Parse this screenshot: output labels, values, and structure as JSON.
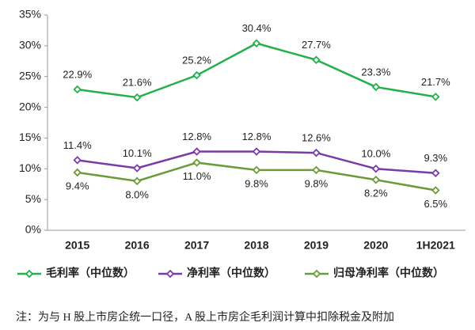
{
  "chart_data": {
    "type": "line",
    "categories": [
      "2015",
      "2016",
      "2017",
      "2018",
      "2019",
      "2020",
      "1H2021"
    ],
    "series": [
      {
        "name": "毛利率（中位数）",
        "color": "#22b04b",
        "label_pos": "above",
        "values": [
          22.9,
          21.6,
          25.2,
          30.4,
          27.7,
          23.3,
          21.7
        ],
        "value_labels": [
          "22.9%",
          "21.6%",
          "25.2%",
          "30.4%",
          "27.7%",
          "23.3%",
          "21.7%"
        ]
      },
      {
        "name": "净利率（中位数）",
        "color": "#7a3aa8",
        "label_pos": "above",
        "values": [
          11.4,
          10.1,
          12.8,
          12.8,
          12.6,
          10.0,
          9.3
        ],
        "value_labels": [
          "11.4%",
          "10.1%",
          "12.8%",
          "12.8%",
          "12.6%",
          "10.0%",
          "9.3%"
        ]
      },
      {
        "name": "归母净利率（中位数）",
        "color": "#6b9a37",
        "label_pos": "below",
        "values": [
          9.4,
          8.0,
          11.0,
          9.8,
          9.8,
          8.2,
          6.5
        ],
        "value_labels": [
          "9.4%",
          "8.0%",
          "11.0%",
          "9.8%",
          "9.8%",
          "8.2%",
          "6.5%"
        ]
      }
    ],
    "ylim": [
      0,
      35
    ],
    "yticks": [
      {
        "value": 0,
        "label": "0%"
      },
      {
        "value": 5,
        "label": "5%"
      },
      {
        "value": 10,
        "label": "10%"
      },
      {
        "value": 15,
        "label": "15%"
      },
      {
        "value": 20,
        "label": "20%"
      },
      {
        "value": 25,
        "label": "25%"
      },
      {
        "value": 30,
        "label": "30%"
      },
      {
        "value": 35,
        "label": "35%"
      }
    ],
    "grid": false,
    "note": "注：为与 H 股上市房企统一口径，A 股上市房企毛利润计算中扣除税金及附加"
  }
}
